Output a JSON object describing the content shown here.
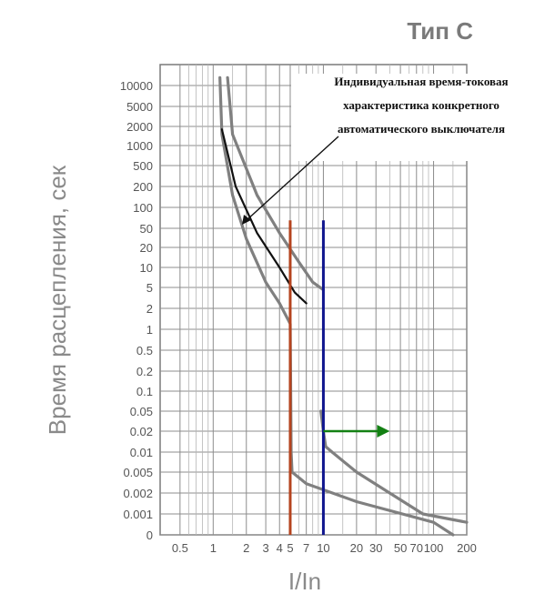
{
  "chart_data": {
    "type": "line",
    "title": "Тип С",
    "xlabel": "I/In",
    "ylabel": "Время расцепления, сек",
    "x_scale": "log",
    "y_scale": "custom-log",
    "grid": true,
    "x_tick_labels": [
      "0.5",
      "1",
      "2",
      "3",
      "4",
      "5",
      "7",
      "10",
      "20",
      "30",
      "50",
      "70",
      "100",
      "200"
    ],
    "y_tick_labels": [
      "10000",
      "5000",
      "2000",
      "1000",
      "500",
      "200",
      "100",
      "50",
      "20",
      "10",
      "5",
      "2",
      "1",
      "0.5",
      "0.2",
      "0.1",
      "0.05",
      "0.02",
      "0.01",
      "0.005",
      "0.002",
      "0.001",
      "0"
    ],
    "annotation": {
      "lines": [
        "Индивидуальная время-токовая",
        "характеристика конкретного",
        "автоматического выключателя"
      ]
    },
    "series": [
      {
        "color": "#808080",
        "points": [
          [
            1.15,
            13000
          ],
          [
            1.2,
            1500
          ],
          [
            1.5,
            150
          ],
          [
            2,
            30
          ],
          [
            3,
            6
          ],
          [
            4,
            2.5
          ],
          [
            5,
            1.2
          ],
          [
            5.1,
            0.01
          ],
          [
            5.2,
            0.005
          ],
          [
            7,
            0.003
          ],
          [
            20,
            0.0015
          ],
          [
            100,
            0.0004
          ],
          [
            150,
            0.0001
          ]
        ]
      },
      {
        "color": "#808080",
        "points": [
          [
            1.35,
            13000
          ],
          [
            1.5,
            1500
          ],
          [
            2.5,
            150
          ],
          [
            4,
            40
          ],
          [
            6,
            12
          ],
          [
            8,
            6
          ],
          [
            10,
            4.5
          ]
        ]
      },
      {
        "color": "#808080",
        "points": [
          [
            9.5,
            0.05
          ],
          [
            10,
            0.02
          ],
          [
            10.5,
            0.012
          ],
          [
            12,
            0.01
          ],
          [
            20,
            0.005
          ],
          [
            40,
            0.002
          ],
          [
            80,
            0.001
          ],
          [
            200,
            0.0004
          ]
        ]
      },
      {
        "color": "#111111",
        "points": [
          [
            1.2,
            1800
          ],
          [
            1.6,
            200
          ],
          [
            2.5,
            40
          ],
          [
            4,
            10
          ],
          [
            5.5,
            4
          ],
          [
            7,
            2.5
          ]
        ]
      }
    ],
    "vertical_markers": [
      {
        "x": 5,
        "y_from": 0,
        "y_to": 65,
        "color": "#b5441f"
      },
      {
        "x": 10,
        "y_from": 0,
        "y_to": 65,
        "color": "#10168e"
      }
    ],
    "arrow": {
      "x_from": 10,
      "x_to": 40,
      "y": 0.02,
      "color": "#138013"
    }
  }
}
